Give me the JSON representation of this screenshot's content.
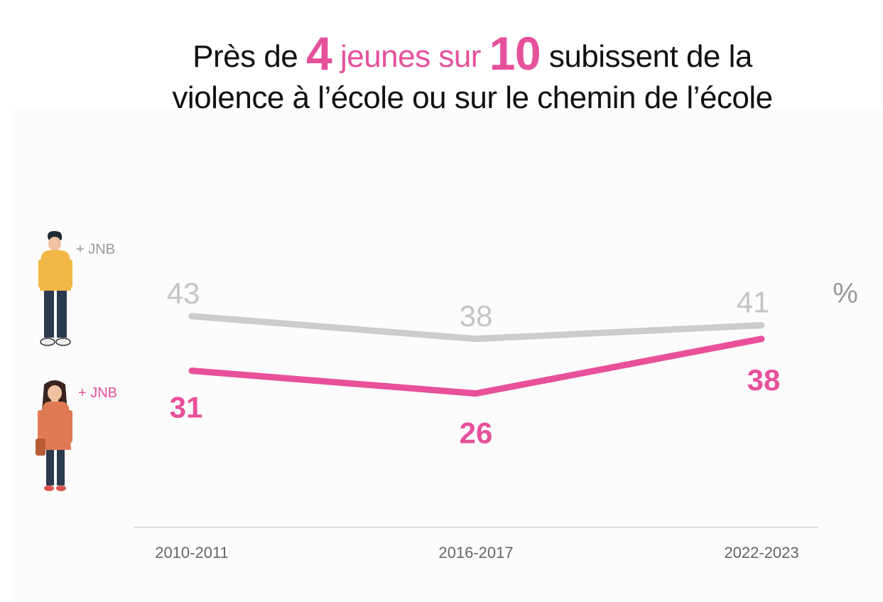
{
  "title": {
    "part1": "Près de ",
    "num1": "4",
    "part2": " jeunes sur ",
    "num2": "10",
    "part3": " subissent de la",
    "line2": "violence à l’école ou sur le chemin de l’école"
  },
  "unit": "%",
  "colors": {
    "boys": "#cccccc",
    "girls": "#e8509a",
    "axis": "#dddddd",
    "tick": "#666666"
  },
  "chart_data": {
    "type": "line",
    "title": "Près de 4 jeunes sur 10 subissent de la violence à l’école ou sur le chemin de l’école",
    "categories": [
      "2010-2011",
      "2016-2017",
      "2022-2023"
    ],
    "series": [
      {
        "name": "+ JNB",
        "group": "boys",
        "values": [
          43,
          38,
          41
        ],
        "color": "#cccccc",
        "icon": "boy-figure-icon"
      },
      {
        "name": "+ JNB",
        "group": "girls",
        "values": [
          31,
          26,
          38
        ],
        "color": "#e8509a",
        "icon": "girl-figure-icon"
      }
    ],
    "ylabel": "%",
    "ylim": [
      0,
      50
    ],
    "grid": false,
    "legend": "left"
  }
}
